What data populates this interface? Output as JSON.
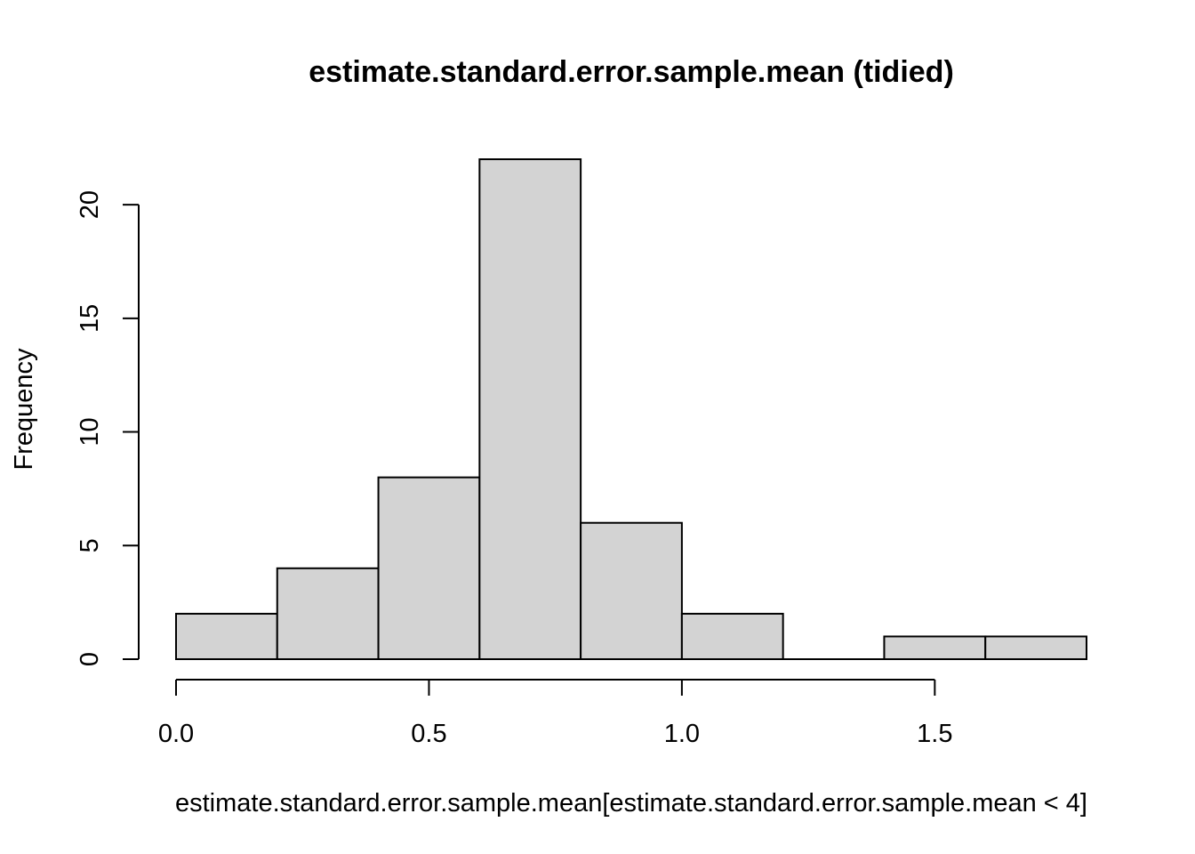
{
  "chart_data": {
    "type": "bar",
    "title": "estimate.standard.error.sample.mean (tidied)",
    "xlabel": "estimate.standard.error.sample.mean[estimate.standard.error.sample.mean < 4]",
    "ylabel": "Frequency",
    "bins": [
      {
        "start": 0.0,
        "end": 0.2,
        "count": 2
      },
      {
        "start": 0.2,
        "end": 0.4,
        "count": 4
      },
      {
        "start": 0.4,
        "end": 0.6,
        "count": 8
      },
      {
        "start": 0.6,
        "end": 0.8,
        "count": 22
      },
      {
        "start": 0.8,
        "end": 1.0,
        "count": 6
      },
      {
        "start": 1.0,
        "end": 1.2,
        "count": 2
      },
      {
        "start": 1.2,
        "end": 1.4,
        "count": 0
      },
      {
        "start": 1.4,
        "end": 1.6,
        "count": 1
      },
      {
        "start": 1.6,
        "end": 1.8,
        "count": 1
      }
    ],
    "xlim": [
      0.0,
      1.8
    ],
    "ylim": [
      0,
      22
    ],
    "x_ticks": [
      0.0,
      0.5,
      1.0,
      1.5
    ],
    "x_tick_labels": [
      "0.0",
      "0.5",
      "1.0",
      "1.5"
    ],
    "y_ticks": [
      0,
      5,
      10,
      15,
      20
    ],
    "y_tick_labels": [
      "0",
      "5",
      "10",
      "15",
      "20"
    ],
    "bar_color": "#d3d3d3",
    "edge_color": "#000000",
    "grid": false
  }
}
